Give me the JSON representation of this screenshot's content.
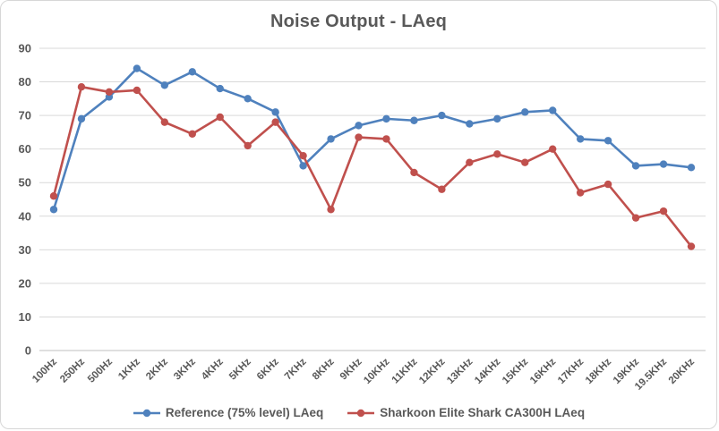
{
  "chart_data": {
    "type": "line",
    "title": "Noise Output - LAeq",
    "categories": [
      "100Hz",
      "250Hz",
      "500Hz",
      "1KHz",
      "2KHz",
      "3KHz",
      "4KHz",
      "5KHz",
      "6KHz",
      "7KHz",
      "8KHz",
      "9KHz",
      "10KHz",
      "11KHz",
      "12KHz",
      "13KHz",
      "14KHz",
      "15KHz",
      "16KHz",
      "17KHz",
      "18KHz",
      "19KHz",
      "19.5KHz",
      "20KHz"
    ],
    "series": [
      {
        "name": "Reference (75% level) LAeq",
        "color": "#4F81BD",
        "values": [
          42,
          69,
          75.5,
          84,
          79,
          83,
          78,
          75,
          71,
          55,
          63,
          67,
          69,
          68.5,
          70,
          67.5,
          69,
          71,
          71.5,
          63,
          62.5,
          55,
          55.5,
          54.5
        ]
      },
      {
        "name": "Sharkoon Elite Shark CA300H LAeq",
        "color": "#C0504D",
        "values": [
          46,
          78.5,
          77,
          77.5,
          68,
          64.5,
          69.5,
          61,
          68,
          58,
          42,
          63.5,
          63,
          53,
          48,
          56,
          58.5,
          56,
          60,
          47,
          49.5,
          39.5,
          41.5,
          31
        ]
      }
    ],
    "xlabel": "",
    "ylabel": "",
    "ylim": [
      0,
      90
    ],
    "yticks": [
      0,
      10,
      20,
      30,
      40,
      50,
      60,
      70,
      80,
      90
    ],
    "grid": true,
    "legend_position": "bottom",
    "marker": "circle"
  },
  "style": {
    "grid_color": "#d9d9d9",
    "axis_color": "#bfbfbf",
    "text_color": "#595959",
    "background": "#ffffff",
    "border_color": "#d7d7d7"
  }
}
